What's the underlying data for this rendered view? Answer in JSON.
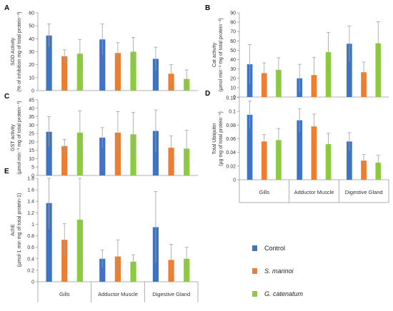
{
  "colors": {
    "control": "#3F74C4",
    "s_marinoi": "#ED7D31",
    "g_catenatum": "#8CCB3E",
    "error": "#a0a0a0",
    "axis": "#999999",
    "text": "#333333"
  },
  "legend": [
    {
      "key": "control",
      "label": "Control",
      "italic": false
    },
    {
      "key": "s_marinoi",
      "label": "S. marinoi",
      "italic": true
    },
    {
      "key": "g_catenatum",
      "label": "G. catenatum",
      "italic": true
    }
  ],
  "chart_data": [
    {
      "panel": "A",
      "type": "bar",
      "ylabel": "SOD Activity",
      "ylabel2": "(% of inhibition mg of total protein⁻¹)",
      "ylim": [
        0,
        60
      ],
      "ystep": 10,
      "show_categories": false,
      "categories": [
        "Gills",
        "Adductor Muscle",
        "Digestive Gland"
      ],
      "series": [
        {
          "key": "control",
          "values": [
            42.5,
            39.5,
            24.5
          ],
          "errors": [
            9,
            12,
            9
          ]
        },
        {
          "key": "s_marinoi",
          "values": [
            26.5,
            29,
            13
          ],
          "errors": [
            5,
            8,
            7
          ]
        },
        {
          "key": "g_catenatum",
          "values": [
            28.5,
            30,
            9
          ],
          "errors": [
            11,
            11,
            7
          ]
        }
      ]
    },
    {
      "panel": "B",
      "type": "bar",
      "ylabel": "Cat activity",
      "ylabel2": "(µmol min⁻¹ mg of total protein⁻¹)",
      "ylim": [
        0,
        90
      ],
      "ystep": 10,
      "show_categories": false,
      "categories": [
        "Gills",
        "Adductor Muscle",
        "Digestive Gland"
      ],
      "series": [
        {
          "key": "control",
          "values": [
            35,
            20,
            57
          ],
          "errors": [
            21,
            15,
            19
          ]
        },
        {
          "key": "s_marinoi",
          "values": [
            25.5,
            23.5,
            26.5
          ],
          "errors": [
            11,
            19,
            11
          ]
        },
        {
          "key": "g_catenatum",
          "values": [
            29,
            48,
            57.5
          ],
          "errors": [
            13,
            21,
            23
          ]
        }
      ]
    },
    {
      "panel": "C",
      "type": "bar",
      "ylabel": "GST activity",
      "ylabel2": "(µmol min⁻¹ mg of total protein⁻¹)",
      "ylim": [
        0,
        45
      ],
      "ystep": 5,
      "show_categories": false,
      "categories": [
        "Gills",
        "Adductor Muscle",
        "Digestive Gland"
      ],
      "series": [
        {
          "key": "control",
          "values": [
            26,
            22.5,
            26.5
          ],
          "errors": [
            9,
            6,
            12.5
          ]
        },
        {
          "key": "s_marinoi",
          "values": [
            17.5,
            25.5,
            16.5
          ],
          "errors": [
            4,
            12.5,
            7
          ]
        },
        {
          "key": "g_catenatum",
          "values": [
            25.5,
            24.5,
            16
          ],
          "errors": [
            13,
            13,
            11
          ]
        }
      ]
    },
    {
      "panel": "D",
      "type": "bar",
      "ylabel": "Total Ubiquitin",
      "ylabel2": "(µg mg of total protein⁻¹)",
      "ylim": [
        0,
        0.12
      ],
      "ystep": 0.02,
      "decimals": 2,
      "show_categories": true,
      "categories": [
        "Gills",
        "Adductor Muscle",
        "Digestive Gland"
      ],
      "series": [
        {
          "key": "control",
          "values": [
            0.095,
            0.087,
            0.056
          ],
          "errors": [
            0.02,
            0.017,
            0.013
          ]
        },
        {
          "key": "s_marinoi",
          "values": [
            0.056,
            0.078,
            0.028
          ],
          "errors": [
            0.01,
            0.018,
            0.009
          ]
        },
        {
          "key": "g_catenatum",
          "values": [
            0.058,
            0.052,
            0.025
          ],
          "errors": [
            0.017,
            0.016,
            0.011
          ]
        }
      ]
    },
    {
      "panel": "E",
      "type": "bar",
      "ylabel": "AchE",
      "ylabel2": "(µmol-1 min mg of total protein-1)",
      "ylim": [
        0,
        1.8
      ],
      "ystep": 0.2,
      "decimals": 1,
      "show_categories": true,
      "categories": [
        "Gills",
        "Adductor Muscle",
        "Digestive Gland"
      ],
      "series": [
        {
          "key": "control",
          "values": [
            1.37,
            0.4,
            0.95
          ],
          "errors": [
            0.45,
            0.15,
            0.62
          ]
        },
        {
          "key": "s_marinoi",
          "values": [
            0.73,
            0.44,
            0.38
          ],
          "errors": [
            0.28,
            0.29,
            0.27
          ]
        },
        {
          "key": "g_catenatum",
          "values": [
            1.08,
            0.35,
            0.4
          ],
          "errors": [
            0.76,
            0.12,
            0.2
          ]
        }
      ]
    }
  ]
}
